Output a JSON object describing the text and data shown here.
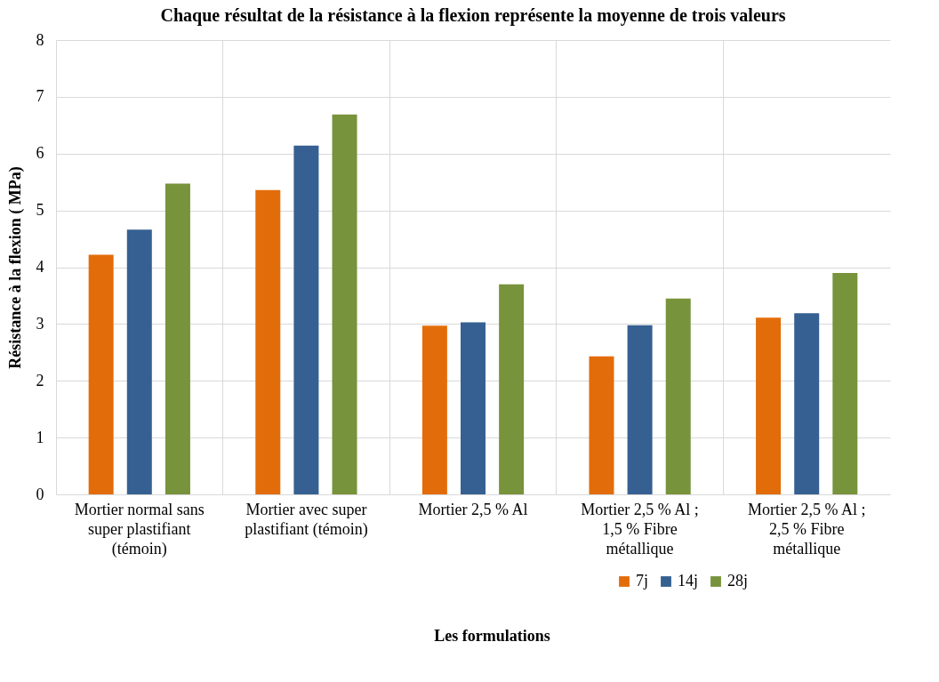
{
  "chart_data": {
    "type": "bar",
    "title": "Chaque résultat de la résistance à la flexion représente la moyenne de trois valeurs",
    "xlabel": "Les formulations",
    "ylabel": "Résistance à la flexion ( MPa)",
    "categories": [
      "Mortier normal sans super plastifiant (témoin)",
      "Mortier avec super plastifiant (témoin)",
      "Mortier 2,5 % Al",
      "Mortier 2,5 % Al ; 1,5 % Fibre métallique",
      "Mortier 2,5 % Al ; 2,5 % Fibre métallique"
    ],
    "series": [
      {
        "name": "7j",
        "color": "#e36c0a",
        "values": [
          4.22,
          5.36,
          2.97,
          2.43,
          3.11
        ]
      },
      {
        "name": "14j",
        "color": "#366092",
        "values": [
          4.66,
          6.14,
          3.03,
          2.98,
          3.19
        ]
      },
      {
        "name": "28j",
        "color": "#77933c",
        "values": [
          5.47,
          6.69,
          3.7,
          3.45,
          3.9
        ]
      }
    ],
    "ylim": [
      0,
      8
    ],
    "yticks": [
      0,
      1,
      2,
      3,
      4,
      5,
      6,
      7,
      8
    ],
    "grid": true,
    "legend": "bottom"
  }
}
